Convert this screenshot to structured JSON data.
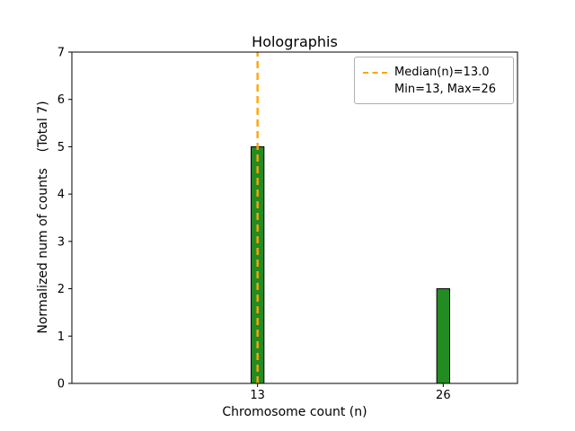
{
  "chart_data": {
    "type": "bar",
    "title": "Holographis",
    "xlabel": "Chromosome count (n)",
    "ylabel": "Normalized num of counts    (Total 7)",
    "x": [
      13,
      26
    ],
    "values": [
      5,
      2
    ],
    "xticks": [
      "13",
      "26"
    ],
    "yticks": [
      0,
      1,
      2,
      3,
      4,
      5,
      6,
      7
    ],
    "xlim": [
      0,
      31.2
    ],
    "ylim": [
      0,
      7
    ],
    "bar_width": 0.9,
    "bar_color": "#228B22",
    "bar_edge_color": "#000000",
    "median": 13,
    "median_color": "#FFA500",
    "legend": {
      "position": "upper right",
      "entries": [
        "Median(n)=13.0",
        "Min=13, Max=26"
      ]
    },
    "grid": false
  }
}
